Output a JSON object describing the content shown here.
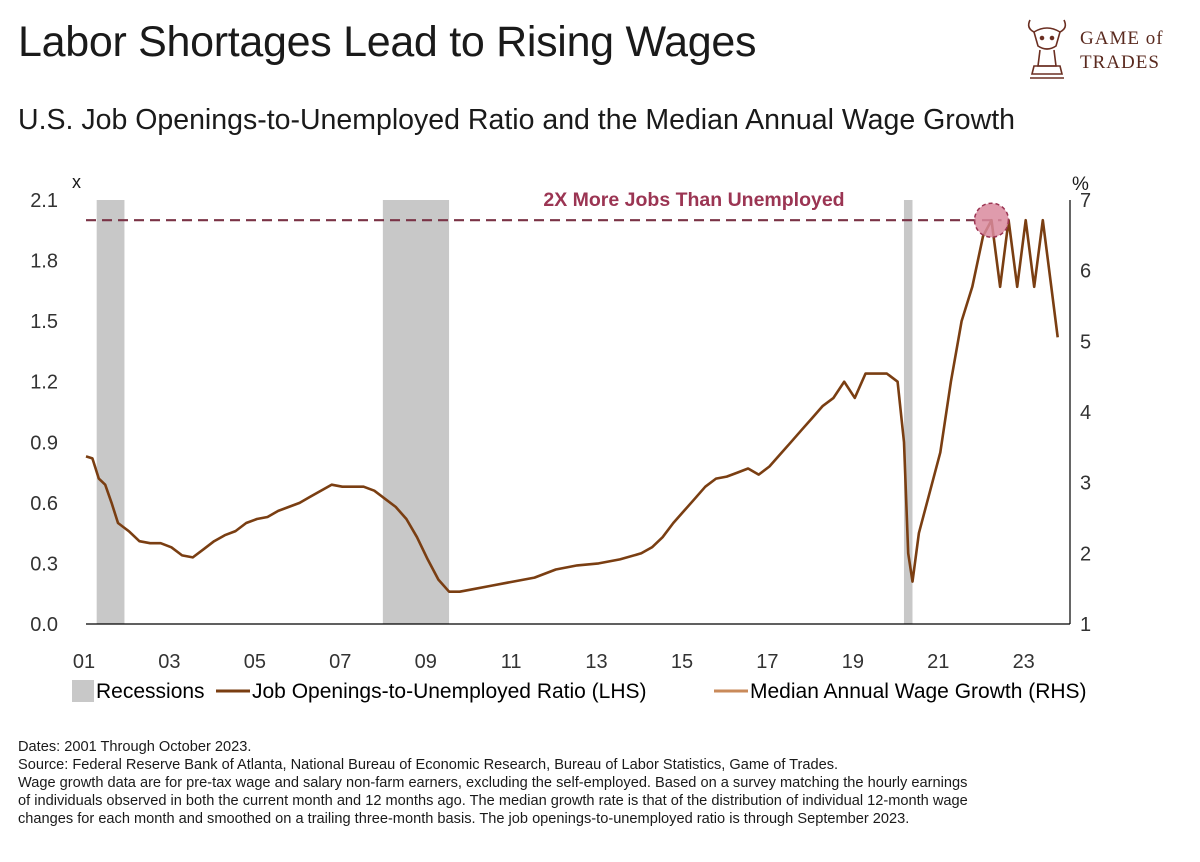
{
  "title": "Labor Shortages Lead to Rising Wages",
  "subtitle": "U.S. Job Openings-to-Unemployed Ratio and the Median Annual Wage Growth",
  "logo": {
    "line1": "GAME of",
    "line2": "TRADES",
    "icon": "bull-knight-icon"
  },
  "colors": {
    "wage_line": "#7a3e12",
    "ratio_line": "#c98a5a",
    "recession": "#c8c8c8",
    "annotation": "#9b3553",
    "marker_fill": "#d98a9e"
  },
  "chart_data": {
    "type": "line",
    "left_axis": {
      "unit_label": "x",
      "ylim": [
        0.0,
        2.1
      ],
      "ticks": [
        "0.0",
        "0.3",
        "0.6",
        "0.9",
        "1.2",
        "1.5",
        "1.8",
        "2.1"
      ],
      "tick_values": [
        0,
        0.3,
        0.6,
        0.9,
        1.2,
        1.5,
        1.8,
        2.1
      ]
    },
    "right_axis": {
      "unit_label": "%",
      "ylim": [
        1,
        7
      ],
      "ticks": [
        "1",
        "2",
        "3",
        "4",
        "5",
        "6",
        "7"
      ],
      "tick_values": [
        1,
        2,
        3,
        4,
        5,
        6,
        7
      ]
    },
    "x_axis": {
      "xlim": [
        2001.0,
        2023.85
      ],
      "tick_labels": [
        "01",
        "03",
        "05",
        "07",
        "09",
        "11",
        "13",
        "15",
        "17",
        "19",
        "21",
        "23"
      ],
      "tick_values": [
        2001,
        2003,
        2005,
        2007,
        2009,
        2011,
        2013,
        2015,
        2017,
        2019,
        2021,
        2023
      ]
    },
    "recessions": [
      [
        2001.25,
        2001.9
      ],
      [
        2007.95,
        2009.5
      ],
      [
        2020.15,
        2020.35
      ]
    ],
    "reference_line": {
      "value": 2.0,
      "axis": "left",
      "label": "2X More Jobs Than Unemployed"
    },
    "highlight_point": {
      "x": 2022.2,
      "y": 2.0
    },
    "series": [
      {
        "name": "Job Openings-to-Unemployed Ratio (LHS)",
        "axis": "left",
        "color_key": "wage_line",
        "x": [
          2001.0,
          2001.15,
          2001.3,
          2001.45,
          2001.6,
          2001.75,
          2002.0,
          2002.25,
          2002.5,
          2002.75,
          2003.0,
          2003.25,
          2003.5,
          2003.75,
          2004.0,
          2004.25,
          2004.5,
          2004.75,
          2005.0,
          2005.25,
          2005.5,
          2005.75,
          2006.0,
          2006.25,
          2006.5,
          2006.75,
          2007.0,
          2007.25,
          2007.5,
          2007.75,
          2008.0,
          2008.25,
          2008.5,
          2008.75,
          2009.0,
          2009.25,
          2009.5,
          2009.75,
          2010.0,
          2010.5,
          2011.0,
          2011.5,
          2012.0,
          2012.5,
          2013.0,
          2013.5,
          2014.0,
          2014.25,
          2014.5,
          2014.75,
          2015.0,
          2015.25,
          2015.5,
          2015.75,
          2016.0,
          2016.25,
          2016.5,
          2016.75,
          2017.0,
          2017.25,
          2017.5,
          2017.75,
          2018.0,
          2018.25,
          2018.5,
          2018.75,
          2019.0,
          2019.25,
          2019.5,
          2019.75,
          2020.0,
          2020.15,
          2020.25,
          2020.35,
          2020.5,
          2020.75,
          2021.0,
          2021.25,
          2021.5,
          2021.75,
          2022.0,
          2022.2,
          2022.4,
          2022.6,
          2022.8,
          2023.0,
          2023.2,
          2023.4,
          2023.6,
          2023.75
        ],
        "y": [
          0.83,
          0.82,
          0.72,
          0.69,
          0.6,
          0.5,
          0.46,
          0.41,
          0.4,
          0.4,
          0.38,
          0.34,
          0.33,
          0.37,
          0.41,
          0.44,
          0.46,
          0.5,
          0.52,
          0.53,
          0.56,
          0.58,
          0.6,
          0.63,
          0.66,
          0.69,
          0.68,
          0.68,
          0.68,
          0.66,
          0.62,
          0.58,
          0.52,
          0.43,
          0.32,
          0.22,
          0.16,
          0.16,
          0.17,
          0.19,
          0.21,
          0.23,
          0.27,
          0.29,
          0.3,
          0.32,
          0.35,
          0.38,
          0.43,
          0.5,
          0.56,
          0.62,
          0.68,
          0.72,
          0.73,
          0.75,
          0.77,
          0.74,
          0.78,
          0.84,
          0.9,
          0.96,
          1.02,
          1.08,
          1.12,
          1.2,
          1.12,
          1.24,
          1.24,
          1.24,
          1.2,
          0.9,
          0.35,
          0.21,
          0.45,
          0.65,
          0.85,
          1.2,
          1.5,
          1.67,
          1.92,
          2.0,
          1.67,
          2.0,
          1.67,
          2.0,
          1.67,
          2.0,
          1.67,
          1.42
        ]
      },
      {
        "name": "Median Annual Wage Growth (RHS)",
        "axis": "right",
        "color_key": "ratio_line",
        "x": [],
        "y": []
      }
    ],
    "legend": [
      "Recessions",
      "Job Openings-to-Unemployed Ratio (LHS)",
      "Median Annual Wage Growth (RHS)"
    ]
  },
  "footer": {
    "dates": "Dates: 2001 Through October 2023.",
    "source": "Source: Federal Reserve Bank of Atlanta, National Bureau of Economic Research, Bureau of Labor Statistics, Game of Trades.",
    "note1": "Wage growth data are for pre-tax wage and salary non-farm earners, excluding the self-employed.  Based on a survey matching the hourly earnings",
    "note2": "of individuals observed in both the current month and 12 months ago.  The median growth rate is that of the distribution of individual 12-month wage",
    "note3": "changes for each month and smoothed on a trailing three-month basis. The job openings-to-unemployed ratio is through September 2023."
  }
}
